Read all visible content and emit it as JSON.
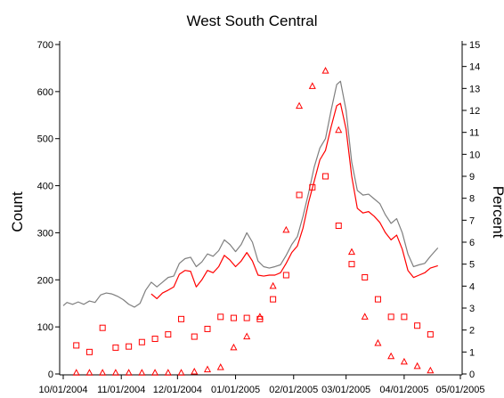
{
  "chart_data": {
    "type": "line",
    "title": "West South Central",
    "ylabel": "Count",
    "y2label": "Percent",
    "xlabel": "",
    "x_ticks": [
      "10/01/2004",
      "11/01/2004",
      "12/01/2004",
      "01/01/2005",
      "02/01/2005",
      "03/01/2005",
      "04/01/2005",
      "05/01/2005"
    ],
    "x_range": [
      "2004-10-01",
      "2005-05-01"
    ],
    "ylim": [
      0,
      700
    ],
    "y_ticks": [
      0,
      100,
      200,
      300,
      400,
      500,
      600,
      700
    ],
    "y2lim": [
      0,
      15
    ],
    "y2_ticks": [
      0,
      1,
      2,
      3,
      4,
      5,
      6,
      7,
      8,
      9,
      10,
      11,
      12,
      13,
      14,
      15
    ],
    "legend": "none",
    "grid": false,
    "colors": {
      "gray_series": "#7f7f7f",
      "red_series": "#ff0000",
      "axis": "#000000"
    },
    "series": [
      {
        "type": "line",
        "axis": "left",
        "color": "#7f7f7f",
        "points": [
          [
            "2004-10-01",
            145
          ],
          [
            "2004-10-03",
            152
          ],
          [
            "2004-10-06",
            148
          ],
          [
            "2004-10-09",
            153
          ],
          [
            "2004-10-12",
            148
          ],
          [
            "2004-10-15",
            155
          ],
          [
            "2004-10-18",
            152
          ],
          [
            "2004-10-21",
            168
          ],
          [
            "2004-10-24",
            172
          ],
          [
            "2004-10-27",
            170
          ],
          [
            "2004-10-30",
            165
          ],
          [
            "2004-11-02",
            158
          ],
          [
            "2004-11-05",
            148
          ],
          [
            "2004-11-08",
            142
          ],
          [
            "2004-11-11",
            150
          ],
          [
            "2004-11-14",
            178
          ],
          [
            "2004-11-17",
            195
          ],
          [
            "2004-11-20",
            185
          ],
          [
            "2004-11-23",
            195
          ],
          [
            "2004-11-26",
            205
          ],
          [
            "2004-11-29",
            208
          ],
          [
            "2004-12-02",
            235
          ],
          [
            "2004-12-05",
            245
          ],
          [
            "2004-12-08",
            248
          ],
          [
            "2004-12-11",
            228
          ],
          [
            "2004-12-14",
            238
          ],
          [
            "2004-12-17",
            255
          ],
          [
            "2004-12-20",
            250
          ],
          [
            "2004-12-23",
            262
          ],
          [
            "2004-12-26",
            285
          ],
          [
            "2004-12-29",
            275
          ],
          [
            "2005-01-01",
            260
          ],
          [
            "2005-01-04",
            275
          ],
          [
            "2005-01-07",
            300
          ],
          [
            "2005-01-10",
            280
          ],
          [
            "2005-01-13",
            240
          ],
          [
            "2005-01-16",
            228
          ],
          [
            "2005-01-19",
            225
          ],
          [
            "2005-01-22",
            228
          ],
          [
            "2005-01-25",
            232
          ],
          [
            "2005-01-28",
            252
          ],
          [
            "2005-01-31",
            275
          ],
          [
            "2005-02-03",
            292
          ],
          [
            "2005-02-06",
            335
          ],
          [
            "2005-02-09",
            385
          ],
          [
            "2005-02-12",
            440
          ],
          [
            "2005-02-15",
            480
          ],
          [
            "2005-02-18",
            500
          ],
          [
            "2005-02-21",
            560
          ],
          [
            "2005-02-24",
            615
          ],
          [
            "2005-02-26",
            622
          ],
          [
            "2005-03-01",
            560
          ],
          [
            "2005-03-04",
            450
          ],
          [
            "2005-03-07",
            390
          ],
          [
            "2005-03-10",
            380
          ],
          [
            "2005-03-13",
            382
          ],
          [
            "2005-03-16",
            372
          ],
          [
            "2005-03-19",
            362
          ],
          [
            "2005-03-22",
            338
          ],
          [
            "2005-03-25",
            320
          ],
          [
            "2005-03-28",
            330
          ],
          [
            "2005-03-31",
            300
          ],
          [
            "2005-04-03",
            255
          ],
          [
            "2005-04-06",
            228
          ],
          [
            "2005-04-09",
            232
          ],
          [
            "2005-04-12",
            235
          ],
          [
            "2005-04-15",
            250
          ],
          [
            "2005-04-19",
            268
          ]
        ]
      },
      {
        "type": "line",
        "axis": "left",
        "color": "#ff0000",
        "points": [
          [
            "2004-11-17",
            170
          ],
          [
            "2004-11-20",
            160
          ],
          [
            "2004-11-23",
            172
          ],
          [
            "2004-11-26",
            178
          ],
          [
            "2004-11-29",
            185
          ],
          [
            "2004-12-02",
            212
          ],
          [
            "2004-12-05",
            220
          ],
          [
            "2004-12-08",
            218
          ],
          [
            "2004-12-11",
            185
          ],
          [
            "2004-12-14",
            200
          ],
          [
            "2004-12-17",
            220
          ],
          [
            "2004-12-20",
            215
          ],
          [
            "2004-12-23",
            228
          ],
          [
            "2004-12-26",
            252
          ],
          [
            "2004-12-29",
            242
          ],
          [
            "2005-01-01",
            228
          ],
          [
            "2005-01-04",
            240
          ],
          [
            "2005-01-07",
            258
          ],
          [
            "2005-01-10",
            240
          ],
          [
            "2005-01-13",
            210
          ],
          [
            "2005-01-16",
            208
          ],
          [
            "2005-01-19",
            210
          ],
          [
            "2005-01-22",
            210
          ],
          [
            "2005-01-25",
            215
          ],
          [
            "2005-01-28",
            235
          ],
          [
            "2005-01-31",
            258
          ],
          [
            "2005-02-03",
            272
          ],
          [
            "2005-02-06",
            310
          ],
          [
            "2005-02-09",
            365
          ],
          [
            "2005-02-12",
            410
          ],
          [
            "2005-02-15",
            455
          ],
          [
            "2005-02-18",
            475
          ],
          [
            "2005-02-21",
            525
          ],
          [
            "2005-02-24",
            570
          ],
          [
            "2005-02-26",
            575
          ],
          [
            "2005-03-01",
            520
          ],
          [
            "2005-03-04",
            420
          ],
          [
            "2005-03-07",
            352
          ],
          [
            "2005-03-10",
            342
          ],
          [
            "2005-03-13",
            345
          ],
          [
            "2005-03-16",
            335
          ],
          [
            "2005-03-19",
            322
          ],
          [
            "2005-03-22",
            300
          ],
          [
            "2005-03-25",
            285
          ],
          [
            "2005-03-28",
            295
          ],
          [
            "2005-03-31",
            265
          ],
          [
            "2005-04-03",
            220
          ],
          [
            "2005-04-06",
            205
          ],
          [
            "2005-04-09",
            210
          ],
          [
            "2005-04-12",
            215
          ],
          [
            "2005-04-15",
            225
          ],
          [
            "2005-04-19",
            230
          ]
        ]
      },
      {
        "type": "scatter",
        "axis": "right",
        "marker": "square",
        "color": "#ff0000",
        "points": [
          [
            "2004-10-08",
            1.3
          ],
          [
            "2004-10-15",
            1.0
          ],
          [
            "2004-10-22",
            2.1
          ],
          [
            "2004-10-29",
            1.2
          ],
          [
            "2004-11-05",
            1.25
          ],
          [
            "2004-11-12",
            1.45
          ],
          [
            "2004-11-19",
            1.6
          ],
          [
            "2004-11-26",
            1.8
          ],
          [
            "2004-12-03",
            2.5
          ],
          [
            "2004-12-10",
            1.7
          ],
          [
            "2004-12-17",
            2.05
          ],
          [
            "2004-12-24",
            2.6
          ],
          [
            "2004-12-31",
            2.55
          ],
          [
            "2005-01-07",
            2.55
          ],
          [
            "2005-01-14",
            2.5
          ],
          [
            "2005-01-21",
            3.4
          ],
          [
            "2005-01-28",
            4.5
          ],
          [
            "2005-02-04",
            8.15
          ],
          [
            "2005-02-11",
            8.5
          ],
          [
            "2005-02-18",
            9.0
          ],
          [
            "2005-02-25",
            6.75
          ],
          [
            "2005-03-04",
            5.0
          ],
          [
            "2005-03-11",
            4.4
          ],
          [
            "2005-03-18",
            3.4
          ],
          [
            "2005-03-25",
            2.6
          ],
          [
            "2005-04-01",
            2.6
          ],
          [
            "2005-04-08",
            2.2
          ],
          [
            "2005-04-15",
            1.8
          ]
        ]
      },
      {
        "type": "scatter",
        "axis": "right",
        "marker": "triangle",
        "color": "#ff0000",
        "points": [
          [
            "2004-10-08",
            0.05
          ],
          [
            "2004-10-15",
            0.05
          ],
          [
            "2004-10-22",
            0.05
          ],
          [
            "2004-10-29",
            0.05
          ],
          [
            "2004-11-05",
            0.05
          ],
          [
            "2004-11-12",
            0.05
          ],
          [
            "2004-11-19",
            0.05
          ],
          [
            "2004-11-26",
            0.05
          ],
          [
            "2004-12-03",
            0.05
          ],
          [
            "2004-12-10",
            0.1
          ],
          [
            "2004-12-17",
            0.2
          ],
          [
            "2004-12-24",
            0.3
          ],
          [
            "2004-12-31",
            1.2
          ],
          [
            "2005-01-07",
            1.7
          ],
          [
            "2005-01-14",
            2.6
          ],
          [
            "2005-01-21",
            4.0
          ],
          [
            "2005-01-28",
            6.55
          ],
          [
            "2005-02-04",
            12.2
          ],
          [
            "2005-02-11",
            13.1
          ],
          [
            "2005-02-18",
            13.8
          ],
          [
            "2005-02-25",
            11.1
          ],
          [
            "2005-03-04",
            5.55
          ],
          [
            "2005-03-11",
            2.6
          ],
          [
            "2005-03-18",
            1.4
          ],
          [
            "2005-03-25",
            0.8
          ],
          [
            "2005-04-01",
            0.55
          ],
          [
            "2005-04-08",
            0.35
          ],
          [
            "2005-04-15",
            0.15
          ]
        ]
      }
    ]
  }
}
